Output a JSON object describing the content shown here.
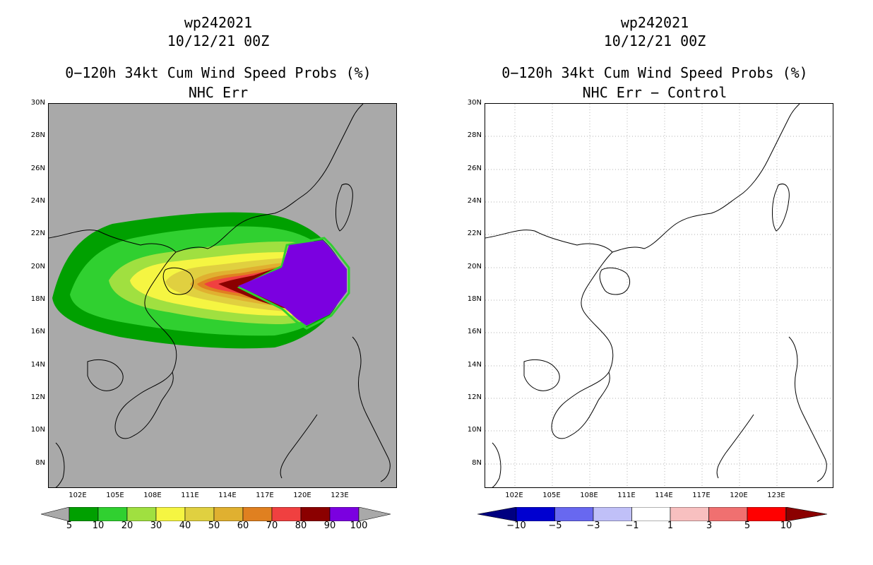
{
  "left": {
    "storm_id": "wp242021",
    "date_time": "10/12/21 00Z",
    "product": "0−120h 34kt Cum Wind Speed Probs (%)",
    "subtitle": "NHC Err",
    "background": "#a9a9a9",
    "colorbar": {
      "labels": [
        "5",
        "10",
        "20",
        "30",
        "40",
        "50",
        "60",
        "70",
        "80",
        "90",
        "100"
      ],
      "colors": [
        "#00a000",
        "#30d030",
        "#a0e040",
        "#f5f542",
        "#e0d040",
        "#e0b030",
        "#e08020",
        "#f04040",
        "#8b0000",
        "#7b00e0"
      ],
      "end_colors": [
        "#a9a9a9",
        "#a9a9a9"
      ]
    }
  },
  "right": {
    "storm_id": "wp242021",
    "date_time": "10/12/21 00Z",
    "product": "0−120h 34kt Cum Wind Speed Probs (%)",
    "subtitle": "NHC Err − Control",
    "background": "#ffffff",
    "colorbar": {
      "labels": [
        "−10",
        "−5",
        "−3",
        "−1",
        "1",
        "3",
        "5",
        "10"
      ],
      "colors": [
        "#0000d0",
        "#6868f0",
        "#c0c0f8",
        "#ffffff",
        "#f8c0c0",
        "#f07070",
        "#ff0000"
      ],
      "end_colors": [
        "#000080",
        "#8b0000"
      ]
    }
  },
  "lat_labels": [
    "30N",
    "28N",
    "26N",
    "24N",
    "22N",
    "20N",
    "18N",
    "16N",
    "14N",
    "12N",
    "10N",
    "8N"
  ],
  "lon_labels": [
    "102E",
    "105E",
    "108E",
    "111E",
    "114E",
    "117E",
    "120E",
    "123E"
  ]
}
